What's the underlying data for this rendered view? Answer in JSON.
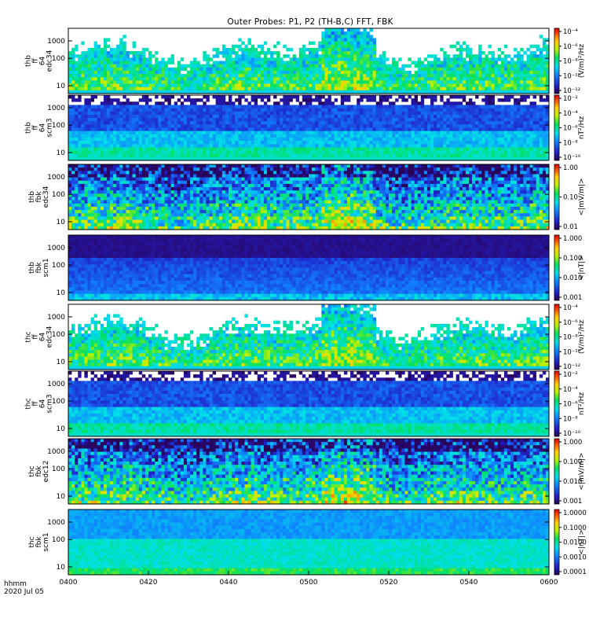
{
  "chart_data": {
    "type": "heatmap",
    "title": "Outer Probes: P1, P2 (TH-B,C) FFT, FBK",
    "x_tick_labels": [
      "0400",
      "0420",
      "0440",
      "0500",
      "0520",
      "0540",
      "0600"
    ],
    "x_label_lines": [
      "hhmm",
      "2020 Jul 05"
    ],
    "colorbar": {
      "scale": "log",
      "colormap": "rainbow"
    },
    "panels": [
      {
        "ylabel": [
          "thb",
          "ff",
          "64",
          "edc34"
        ],
        "y_ticks": [
          "1000",
          "100",
          "10"
        ],
        "style": "fft-e",
        "cb_ticks": [
          "10⁻⁴",
          "10⁻⁶",
          "10⁻⁸",
          "10⁻¹⁰",
          "10⁻¹²"
        ],
        "cb_unit": "(V/m)²/Hz"
      },
      {
        "ylabel": [
          "thb",
          "ff",
          "64",
          "scm3"
        ],
        "y_ticks": [
          "1000",
          "100",
          "10"
        ],
        "style": "fft-b",
        "cb_ticks": [
          "10⁻²",
          "10⁻⁴",
          "10⁻⁶",
          "10⁻⁸",
          "10⁻¹⁰"
        ],
        "cb_unit": "nT²/Hz"
      },
      {
        "ylabel": [
          "thb",
          "fbk",
          "edc34"
        ],
        "y_ticks": [
          "1000",
          "100",
          "10"
        ],
        "style": "fbk-e",
        "cb_ticks": [
          "1.00",
          "0.10",
          "0.01"
        ],
        "cb_unit": "<|mV/m|>"
      },
      {
        "ylabel": [
          "thb",
          "fbk",
          "scm1"
        ],
        "y_ticks": [
          "1000",
          "100",
          "10"
        ],
        "style": "fbk-b-dark",
        "cb_ticks": [
          "1.000",
          "0.100",
          "0.010",
          "0.001"
        ],
        "cb_unit": "<|nT|>"
      },
      {
        "ylabel": [
          "thc",
          "ff",
          "64",
          "edc34"
        ],
        "y_ticks": [
          "1000",
          "100",
          "10"
        ],
        "style": "fft-e",
        "cb_ticks": [
          "10⁻⁴",
          "10⁻⁶",
          "10⁻⁸",
          "10⁻¹⁰",
          "10⁻¹²"
        ],
        "cb_unit": "(V/m)²/Hz"
      },
      {
        "ylabel": [
          "thc",
          "ff",
          "64",
          "scm3"
        ],
        "y_ticks": [
          "1000",
          "100",
          "10"
        ],
        "style": "fft-b",
        "cb_ticks": [
          "10⁻²",
          "10⁻⁴",
          "10⁻⁶",
          "10⁻⁸",
          "10⁻¹⁰"
        ],
        "cb_unit": "nT²/Hz"
      },
      {
        "ylabel": [
          "thc",
          "fbk",
          "edc12"
        ],
        "y_ticks": [
          "1000",
          "100",
          "10"
        ],
        "style": "fbk-e",
        "cb_ticks": [
          "1.000",
          "0.100",
          "0.010",
          "0.001"
        ],
        "cb_unit": "<|mV/m|>"
      },
      {
        "ylabel": [
          "thc",
          "fbk",
          "scm1"
        ],
        "y_ticks": [
          "1000",
          "100",
          "10"
        ],
        "style": "fbk-b-light",
        "cb_ticks": [
          "1.0000",
          "0.1000",
          "0.0100",
          "0.0010",
          "0.0001"
        ],
        "cb_unit": "<|nT|>"
      }
    ]
  }
}
